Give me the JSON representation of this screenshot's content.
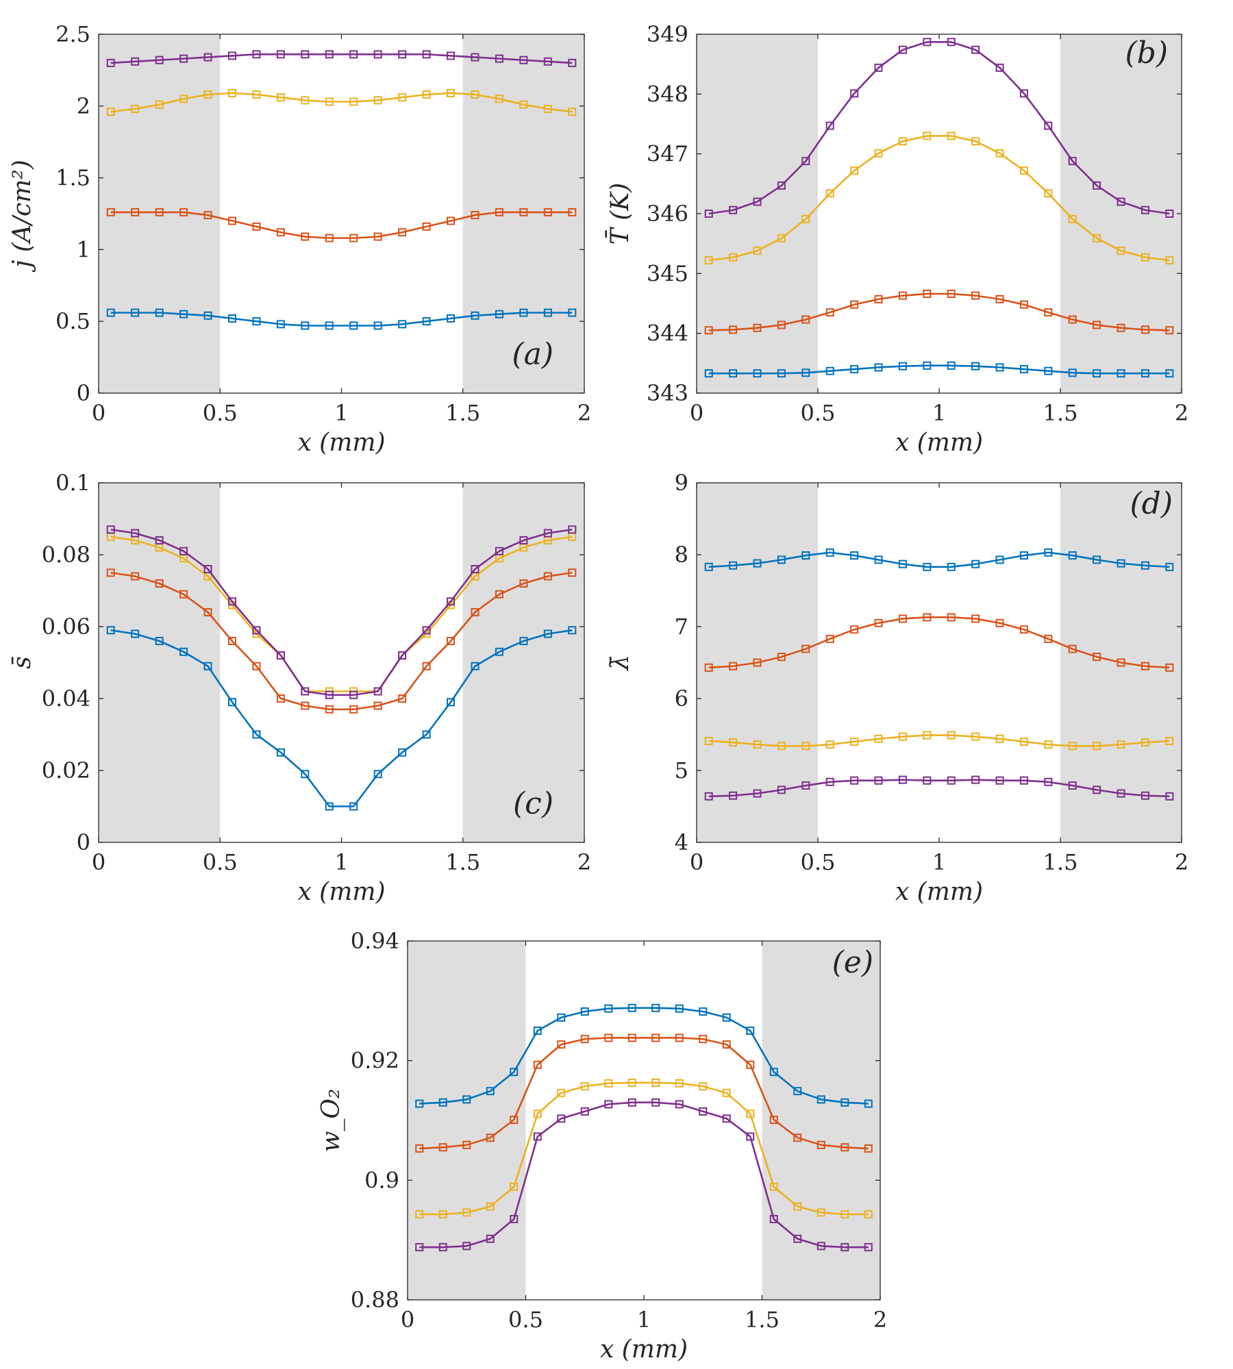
{
  "colors": {
    "series": [
      "#0072BD",
      "#D95319",
      "#EDB120",
      "#7E2F8E"
    ],
    "shade": "#DEDEDE",
    "axis": "#262626"
  },
  "chart_data": [
    {
      "type": "line",
      "panel_label": "(a)",
      "xlabel": "x (mm)",
      "ylabel": "j (A/cm²)",
      "xlim": [
        0,
        2
      ],
      "ylim": [
        0,
        2.5
      ],
      "xticks": [
        "0",
        "0.5",
        "1",
        "1.5",
        "2"
      ],
      "yticks": [
        "0",
        "0.5",
        "1",
        "1.5",
        "2",
        "2.5"
      ],
      "marker": "square",
      "shaded_x_ranges": [
        [
          0,
          0.5
        ],
        [
          1.5,
          2
        ]
      ],
      "x": [
        0.05,
        0.15,
        0.25,
        0.35,
        0.45,
        0.55,
        0.65,
        0.75,
        0.85,
        0.95,
        1.05,
        1.15,
        1.25,
        1.35,
        1.45,
        1.55,
        1.65,
        1.75,
        1.85,
        1.95
      ],
      "series": [
        {
          "values": [
            0.56,
            0.56,
            0.56,
            0.55,
            0.54,
            0.52,
            0.5,
            0.48,
            0.47,
            0.47,
            0.47,
            0.47,
            0.48,
            0.5,
            0.52,
            0.54,
            0.55,
            0.56,
            0.56,
            0.56
          ]
        },
        {
          "values": [
            1.26,
            1.26,
            1.26,
            1.26,
            1.24,
            1.2,
            1.16,
            1.12,
            1.09,
            1.08,
            1.08,
            1.09,
            1.12,
            1.16,
            1.2,
            1.24,
            1.26,
            1.26,
            1.26,
            1.26
          ]
        },
        {
          "values": [
            1.96,
            1.98,
            2.01,
            2.05,
            2.08,
            2.09,
            2.08,
            2.06,
            2.04,
            2.03,
            2.03,
            2.04,
            2.06,
            2.08,
            2.09,
            2.08,
            2.05,
            2.01,
            1.98,
            1.96
          ]
        },
        {
          "values": [
            2.3,
            2.31,
            2.32,
            2.33,
            2.34,
            2.35,
            2.36,
            2.36,
            2.36,
            2.36,
            2.36,
            2.36,
            2.36,
            2.36,
            2.35,
            2.34,
            2.33,
            2.32,
            2.31,
            2.3
          ]
        }
      ]
    },
    {
      "type": "line",
      "panel_label": "(b)",
      "xlabel": "x (mm)",
      "ylabel": "T̄ (K)",
      "xlim": [
        0,
        2
      ],
      "ylim": [
        343,
        349
      ],
      "xticks": [
        "0",
        "0.5",
        "1",
        "1.5",
        "2"
      ],
      "yticks": [
        "343",
        "344",
        "345",
        "346",
        "347",
        "348",
        "349"
      ],
      "marker": "square",
      "shaded_x_ranges": [
        [
          0,
          0.5
        ],
        [
          1.5,
          2
        ]
      ],
      "x": [
        0.05,
        0.15,
        0.25,
        0.35,
        0.45,
        0.55,
        0.65,
        0.75,
        0.85,
        0.95,
        1.05,
        1.15,
        1.25,
        1.35,
        1.45,
        1.55,
        1.65,
        1.75,
        1.85,
        1.95
      ],
      "series": [
        {
          "values": [
            343.33,
            343.33,
            343.33,
            343.33,
            343.34,
            343.37,
            343.4,
            343.43,
            343.45,
            343.46,
            343.46,
            343.45,
            343.43,
            343.4,
            343.37,
            343.34,
            343.33,
            343.33,
            343.33,
            343.33
          ]
        },
        {
          "values": [
            344.05,
            344.06,
            344.09,
            344.14,
            344.23,
            344.35,
            344.48,
            344.57,
            344.63,
            344.66,
            344.66,
            344.63,
            344.57,
            344.48,
            344.35,
            344.23,
            344.14,
            344.09,
            344.06,
            344.05
          ]
        },
        {
          "values": [
            345.22,
            345.27,
            345.38,
            345.59,
            345.91,
            346.34,
            346.72,
            347.01,
            347.21,
            347.3,
            347.3,
            347.21,
            347.01,
            346.72,
            346.34,
            345.91,
            345.59,
            345.38,
            345.27,
            345.22
          ]
        },
        {
          "values": [
            346.0,
            346.06,
            346.2,
            346.47,
            346.88,
            347.47,
            348.01,
            348.44,
            348.74,
            348.87,
            348.87,
            348.74,
            348.44,
            348.01,
            347.47,
            346.88,
            346.47,
            346.2,
            346.06,
            346.0
          ]
        }
      ]
    },
    {
      "type": "line",
      "panel_label": "(c)",
      "xlabel": "x (mm)",
      "ylabel": "s̄",
      "xlim": [
        0,
        2
      ],
      "ylim": [
        0,
        0.1
      ],
      "xticks": [
        "0",
        "0.5",
        "1",
        "1.5",
        "2"
      ],
      "yticks": [
        "0",
        "0.02",
        "0.04",
        "0.06",
        "0.08",
        "0.1"
      ],
      "marker": "square",
      "shaded_x_ranges": [
        [
          0,
          0.5
        ],
        [
          1.5,
          2
        ]
      ],
      "x": [
        0.05,
        0.15,
        0.25,
        0.35,
        0.45,
        0.55,
        0.65,
        0.75,
        0.85,
        0.95,
        1.05,
        1.15,
        1.25,
        1.35,
        1.45,
        1.55,
        1.65,
        1.75,
        1.85,
        1.95
      ],
      "series": [
        {
          "values": [
            0.059,
            0.058,
            0.056,
            0.053,
            0.049,
            0.039,
            0.03,
            0.025,
            0.019,
            0.01,
            0.01,
            0.019,
            0.025,
            0.03,
            0.039,
            0.049,
            0.053,
            0.056,
            0.058,
            0.059
          ]
        },
        {
          "values": [
            0.075,
            0.074,
            0.072,
            0.069,
            0.064,
            0.056,
            0.049,
            0.04,
            0.038,
            0.037,
            0.037,
            0.038,
            0.04,
            0.049,
            0.056,
            0.064,
            0.069,
            0.072,
            0.074,
            0.075
          ]
        },
        {
          "values": [
            0.085,
            0.084,
            0.082,
            0.079,
            0.074,
            0.066,
            0.058,
            0.052,
            0.042,
            0.042,
            0.042,
            0.042,
            0.052,
            0.058,
            0.066,
            0.074,
            0.079,
            0.082,
            0.084,
            0.085
          ]
        },
        {
          "values": [
            0.087,
            0.086,
            0.084,
            0.081,
            0.076,
            0.067,
            0.059,
            0.052,
            0.042,
            0.041,
            0.041,
            0.042,
            0.052,
            0.059,
            0.067,
            0.076,
            0.081,
            0.084,
            0.086,
            0.087
          ]
        }
      ]
    },
    {
      "type": "line",
      "panel_label": "(d)",
      "xlabel": "x (mm)",
      "ylabel": "λ̄",
      "xlim": [
        0,
        2
      ],
      "ylim": [
        4,
        9
      ],
      "xticks": [
        "0",
        "0.5",
        "1",
        "1.5",
        "2"
      ],
      "yticks": [
        "4",
        "5",
        "6",
        "7",
        "8",
        "9"
      ],
      "marker": "square",
      "shaded_x_ranges": [
        [
          0,
          0.5
        ],
        [
          1.5,
          2
        ]
      ],
      "x": [
        0.05,
        0.15,
        0.25,
        0.35,
        0.45,
        0.55,
        0.65,
        0.75,
        0.85,
        0.95,
        1.05,
        1.15,
        1.25,
        1.35,
        1.45,
        1.55,
        1.65,
        1.75,
        1.85,
        1.95
      ],
      "series": [
        {
          "values": [
            7.83,
            7.85,
            7.88,
            7.93,
            7.99,
            8.03,
            7.99,
            7.93,
            7.87,
            7.83,
            7.83,
            7.87,
            7.93,
            7.99,
            8.03,
            7.99,
            7.93,
            7.88,
            7.85,
            7.83
          ]
        },
        {
          "values": [
            6.43,
            6.45,
            6.5,
            6.58,
            6.69,
            6.83,
            6.96,
            7.05,
            7.11,
            7.13,
            7.13,
            7.11,
            7.05,
            6.96,
            6.83,
            6.69,
            6.58,
            6.5,
            6.45,
            6.43
          ]
        },
        {
          "values": [
            5.41,
            5.39,
            5.36,
            5.34,
            5.34,
            5.36,
            5.4,
            5.44,
            5.47,
            5.49,
            5.49,
            5.47,
            5.44,
            5.4,
            5.36,
            5.34,
            5.34,
            5.36,
            5.39,
            5.41
          ]
        },
        {
          "values": [
            4.64,
            4.65,
            4.68,
            4.73,
            4.79,
            4.84,
            4.86,
            4.86,
            4.87,
            4.86,
            4.86,
            4.87,
            4.86,
            4.86,
            4.84,
            4.79,
            4.73,
            4.68,
            4.65,
            4.64
          ]
        }
      ]
    },
    {
      "type": "line",
      "panel_label": "(e)",
      "xlabel": "x (mm)",
      "ylabel": "w_O₂",
      "xlim": [
        0,
        2
      ],
      "ylim": [
        0.88,
        0.94
      ],
      "xticks": [
        "0",
        "0.5",
        "1",
        "1.5",
        "2"
      ],
      "yticks": [
        "0.88",
        "0.9",
        "0.92",
        "0.94"
      ],
      "marker": "square",
      "shaded_x_ranges": [
        [
          0,
          0.5
        ],
        [
          1.5,
          2
        ]
      ],
      "x": [
        0.05,
        0.15,
        0.25,
        0.35,
        0.45,
        0.55,
        0.65,
        0.75,
        0.85,
        0.95,
        1.05,
        1.15,
        1.25,
        1.35,
        1.45,
        1.55,
        1.65,
        1.75,
        1.85,
        1.95
      ],
      "series": [
        {
          "values": [
            0.9128,
            0.913,
            0.9135,
            0.9149,
            0.9181,
            0.925,
            0.9272,
            0.9282,
            0.9287,
            0.9288,
            0.9288,
            0.9287,
            0.9282,
            0.9272,
            0.925,
            0.9181,
            0.9149,
            0.9135,
            0.913,
            0.9128
          ]
        },
        {
          "values": [
            0.9053,
            0.9055,
            0.9059,
            0.9071,
            0.9101,
            0.9193,
            0.9227,
            0.9236,
            0.9238,
            0.9238,
            0.9238,
            0.9238,
            0.9236,
            0.9227,
            0.9193,
            0.9101,
            0.9071,
            0.9059,
            0.9055,
            0.9053
          ]
        },
        {
          "values": [
            0.8943,
            0.8943,
            0.8946,
            0.8956,
            0.8989,
            0.9111,
            0.9146,
            0.9157,
            0.9162,
            0.9163,
            0.9163,
            0.9162,
            0.9157,
            0.9146,
            0.9111,
            0.8989,
            0.8956,
            0.8946,
            0.8943,
            0.8943
          ]
        },
        {
          "values": [
            0.8888,
            0.8888,
            0.889,
            0.8902,
            0.8935,
            0.9073,
            0.9103,
            0.9115,
            0.9127,
            0.913,
            0.913,
            0.9127,
            0.9115,
            0.9103,
            0.9073,
            0.8935,
            0.8902,
            0.889,
            0.8888,
            0.8888
          ]
        }
      ]
    }
  ]
}
